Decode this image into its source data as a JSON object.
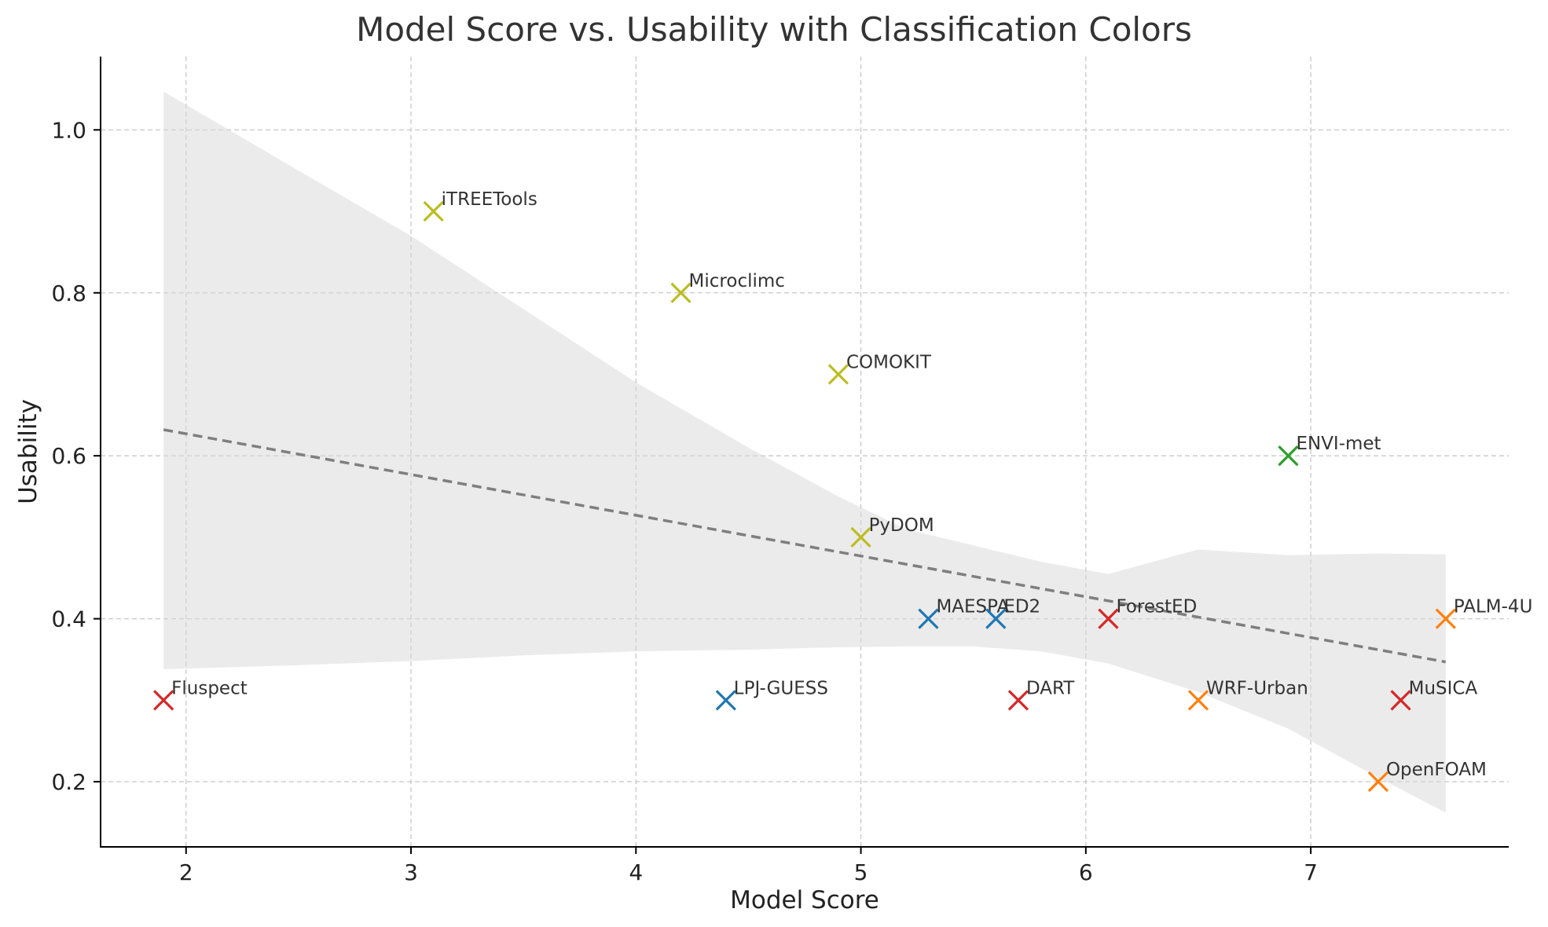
{
  "chart_data": {
    "type": "scatter",
    "title": "Model Score vs. Usability with Classification Colors",
    "xlabel": "Model Score",
    "ylabel": "Usability",
    "xlim": [
      1.62,
      7.88
    ],
    "ylim": [
      0.12,
      1.09
    ],
    "xticks": [
      "2",
      "3",
      "4",
      "5",
      "6",
      "7"
    ],
    "yticks": [
      "0.2",
      "0.4",
      "0.6",
      "0.8",
      "1.0"
    ],
    "grid": true,
    "colors": {
      "red": "#d62728",
      "olive": "#bcbd22",
      "blue": "#1f77b4",
      "green": "#2ca02c",
      "orange": "#ff7f0e"
    },
    "points": [
      {
        "label": "Fluspect",
        "x": 1.9,
        "y": 0.3,
        "color": "red"
      },
      {
        "label": "iTREETools",
        "x": 3.1,
        "y": 0.9,
        "color": "olive"
      },
      {
        "label": "Microclimc",
        "x": 4.2,
        "y": 0.8,
        "color": "olive"
      },
      {
        "label": "LPJ-GUESS",
        "x": 4.4,
        "y": 0.3,
        "color": "blue"
      },
      {
        "label": "COMOKIT",
        "x": 4.9,
        "y": 0.7,
        "color": "olive"
      },
      {
        "label": "PyDOM",
        "x": 5.0,
        "y": 0.5,
        "color": "olive"
      },
      {
        "label": "MAESPA",
        "x": 5.3,
        "y": 0.4,
        "color": "blue"
      },
      {
        "label": "ED2",
        "x": 5.6,
        "y": 0.4,
        "color": "blue"
      },
      {
        "label": "DART",
        "x": 5.7,
        "y": 0.3,
        "color": "red"
      },
      {
        "label": "ForestED",
        "x": 6.1,
        "y": 0.4,
        "color": "red"
      },
      {
        "label": "WRF-Urban",
        "x": 6.5,
        "y": 0.3,
        "color": "orange"
      },
      {
        "label": "ENVI-met",
        "x": 6.9,
        "y": 0.6,
        "color": "green"
      },
      {
        "label": "OpenFOAM",
        "x": 7.3,
        "y": 0.2,
        "color": "orange"
      },
      {
        "label": "MuSICA",
        "x": 7.4,
        "y": 0.3,
        "color": "red"
      },
      {
        "label": "PALM-4U",
        "x": 7.6,
        "y": 0.4,
        "color": "orange"
      }
    ],
    "trend_line": {
      "x": [
        1.9,
        7.6
      ],
      "y": [
        0.632,
        0.347
      ]
    },
    "confidence_band": {
      "x": [
        1.9,
        2.5,
        3.0,
        3.5,
        4.0,
        4.5,
        4.9,
        5.2,
        5.5,
        5.8,
        6.1,
        6.5,
        6.9,
        7.3,
        7.6
      ],
      "upper": [
        1.047,
        0.95,
        0.87,
        0.78,
        0.69,
        0.61,
        0.55,
        0.51,
        0.49,
        0.47,
        0.455,
        0.485,
        0.478,
        0.48,
        0.479
      ],
      "lower": [
        0.338,
        0.343,
        0.348,
        0.355,
        0.36,
        0.362,
        0.365,
        0.366,
        0.366,
        0.36,
        0.345,
        0.31,
        0.265,
        0.205,
        0.162
      ]
    }
  }
}
